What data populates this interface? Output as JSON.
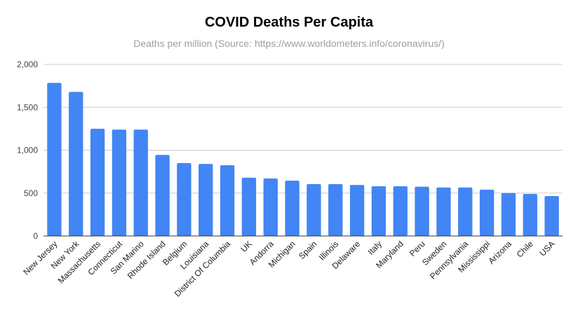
{
  "title": "COVID Deaths Per Capita",
  "subtitle": "Deaths per million (Source: https://www.worldometers.info/coronavirus/)",
  "colors": {
    "bar": "#4285f4",
    "grid": "#cccccc",
    "axis": "#333333"
  },
  "chart_data": {
    "type": "bar",
    "title": "COVID Deaths Per Capita",
    "subtitle": "Deaths per million (Source: https://www.worldometers.info/coronavirus/)",
    "xlabel": "",
    "ylabel": "",
    "ylim": [
      0,
      2000
    ],
    "yticks": [
      0,
      500,
      1000,
      1500,
      2000
    ],
    "ytick_labels": [
      "0",
      "500",
      "1,000",
      "1,500",
      "2,000"
    ],
    "grid": true,
    "legend": "none",
    "categories": [
      "New Jersey",
      "New York",
      "Massachusetts",
      "Connecticut",
      "San Marino",
      "Rhode Island",
      "Belgium",
      "Louisiana",
      "District Of Columbia",
      "UK",
      "Andorra",
      "Michigan",
      "Spain",
      "Illinois",
      "Delaware",
      "Italy",
      "Maryland",
      "Peru",
      "Sweden",
      "Pennsylvania",
      "Mississippi",
      "Arizona",
      "Chile",
      "USA"
    ],
    "values": [
      1785,
      1680,
      1250,
      1240,
      1240,
      945,
      850,
      840,
      825,
      680,
      670,
      645,
      605,
      605,
      595,
      580,
      580,
      575,
      565,
      565,
      540,
      500,
      490,
      465
    ]
  }
}
